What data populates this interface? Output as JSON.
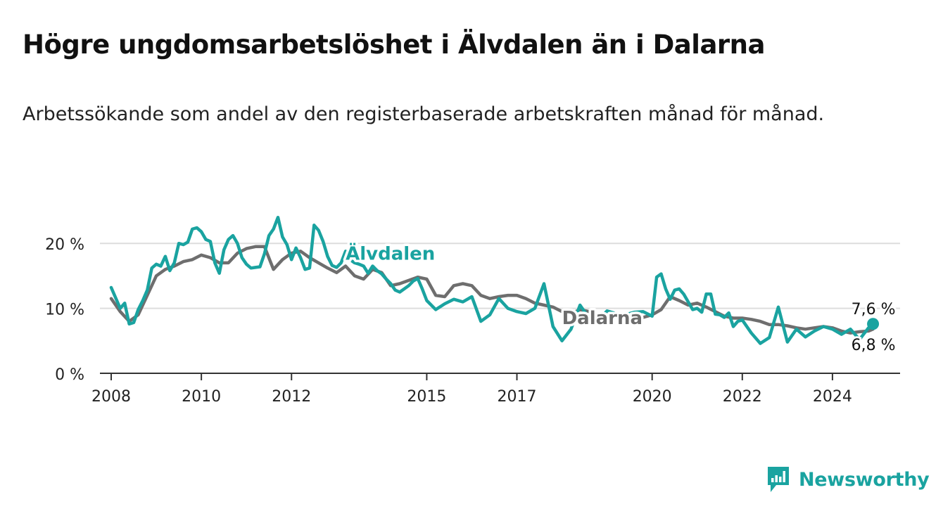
{
  "title": "Högre ungdomsarbetslöshet i Älvdalen än i Dalarna",
  "subtitle": "Arbetssökande som andel av den registerbaserade arbetskraften månad för månad.",
  "brand": {
    "name": "Newsworthy"
  },
  "colors": {
    "alvdalen": "#1aa3a0",
    "dalarna": "#6e6e6e",
    "grid": "#dddddd",
    "axis": "#333333"
  },
  "chart_data": {
    "type": "line",
    "title": "Högre ungdomsarbetslöshet i Älvdalen än i Dalarna",
    "subtitle": "Arbetssökande som andel av den registerbaserade arbetskraften månad för månad.",
    "x_unit": "year",
    "xlim": [
      2007.75,
      2025.5
    ],
    "ylim": [
      0,
      25
    ],
    "y_ticks": [
      0,
      10,
      20
    ],
    "y_tick_labels": [
      "0 %",
      "10 %",
      "20 %"
    ],
    "x_ticks": [
      2008,
      2010,
      2012,
      2015,
      2017,
      2020,
      2022,
      2024
    ],
    "x_tick_labels": [
      "2008",
      "2010",
      "2012",
      "2015",
      "2017",
      "2020",
      "2022",
      "2024"
    ],
    "grid": "horizontal",
    "legend": "inline labels on lines",
    "series": [
      {
        "name": "Älvdalen",
        "color": "#1aa3a0",
        "label_at": [
          2013.2,
          17.5
        ],
        "end_label": "7,6 %",
        "x": [
          2008.0,
          2008.2,
          2008.3,
          2008.4,
          2008.5,
          2008.6,
          2008.7,
          2008.8,
          2008.9,
          2009.0,
          2009.1,
          2009.2,
          2009.3,
          2009.4,
          2009.5,
          2009.6,
          2009.7,
          2009.8,
          2009.9,
          2010.0,
          2010.1,
          2010.2,
          2010.3,
          2010.4,
          2010.5,
          2010.6,
          2010.7,
          2010.8,
          2010.9,
          2011.0,
          2011.1,
          2011.2,
          2011.3,
          2011.4,
          2011.5,
          2011.6,
          2011.7,
          2011.8,
          2011.9,
          2012.0,
          2012.1,
          2012.2,
          2012.3,
          2012.4,
          2012.5,
          2012.6,
          2012.7,
          2012.8,
          2012.9,
          2013.0,
          2013.1,
          2013.2,
          2013.3,
          2013.4,
          2013.5,
          2013.6,
          2013.7,
          2013.8,
          2013.9,
          2014.0,
          2014.1,
          2014.2,
          2014.3,
          2014.4,
          2014.5,
          2014.6,
          2014.7,
          2014.8,
          2014.9,
          2015.0,
          2015.2,
          2015.4,
          2015.6,
          2015.8,
          2016.0,
          2016.2,
          2016.4,
          2016.6,
          2016.8,
          2017.0,
          2017.2,
          2017.4,
          2017.6,
          2017.8,
          2018.0,
          2018.2,
          2018.4,
          2018.6,
          2018.8,
          2019.0,
          2019.2,
          2019.4,
          2019.6,
          2019.8,
          2020.0,
          2020.1,
          2020.2,
          2020.3,
          2020.4,
          2020.5,
          2020.6,
          2020.7,
          2020.8,
          2020.9,
          2021.0,
          2021.1,
          2021.2,
          2021.3,
          2021.4,
          2021.5,
          2021.6,
          2021.7,
          2021.8,
          2021.9,
          2022.0,
          2022.2,
          2022.4,
          2022.6,
          2022.8,
          2023.0,
          2023.2,
          2023.4,
          2023.6,
          2023.8,
          2024.0,
          2024.2,
          2024.4,
          2024.6,
          2024.8,
          2024.9
        ],
        "y": [
          13.2,
          10.0,
          10.8,
          7.6,
          7.8,
          9.8,
          11.2,
          12.8,
          16.2,
          16.8,
          16.5,
          18.0,
          15.8,
          17.0,
          20.0,
          19.8,
          20.2,
          22.2,
          22.4,
          21.8,
          20.6,
          20.3,
          17.0,
          15.4,
          19.0,
          20.6,
          21.2,
          20.0,
          17.8,
          16.8,
          16.2,
          16.3,
          16.4,
          18.4,
          21.2,
          22.2,
          24.0,
          21.0,
          19.8,
          17.5,
          19.3,
          17.8,
          16.0,
          16.2,
          22.8,
          22.0,
          20.3,
          18.0,
          16.6,
          16.3,
          17.0,
          18.8,
          17.5,
          17.0,
          16.8,
          16.5,
          15.4,
          16.5,
          15.8,
          15.3,
          14.5,
          13.8,
          12.8,
          12.5,
          13.0,
          13.5,
          14.2,
          14.6,
          13.0,
          11.2,
          9.8,
          10.7,
          11.4,
          11.0,
          11.8,
          8.0,
          9.0,
          11.5,
          10.0,
          9.5,
          9.2,
          10.0,
          13.8,
          7.2,
          5.0,
          6.8,
          10.5,
          8.5,
          8.2,
          9.6,
          9.2,
          9.0,
          9.4,
          9.5,
          8.8,
          14.8,
          15.3,
          13.0,
          11.4,
          12.8,
          13.0,
          12.2,
          11.0,
          9.8,
          10.0,
          9.4,
          12.2,
          12.2,
          9.1,
          9.0,
          8.6,
          9.3,
          7.2,
          8.0,
          8.2,
          6.2,
          4.6,
          5.5,
          10.2,
          4.8,
          6.8,
          5.6,
          6.5,
          7.2,
          6.8,
          6.0,
          6.8,
          5.2,
          7.0,
          7.6
        ]
      },
      {
        "name": "Dalarna",
        "color": "#6e6e6e",
        "label_at": [
          2018.0,
          7.6
        ],
        "end_label": "6,8 %",
        "x": [
          2008.0,
          2008.2,
          2008.4,
          2008.6,
          2008.8,
          2009.0,
          2009.2,
          2009.4,
          2009.6,
          2009.8,
          2010.0,
          2010.2,
          2010.4,
          2010.6,
          2010.8,
          2011.0,
          2011.2,
          2011.4,
          2011.6,
          2011.8,
          2012.0,
          2012.2,
          2012.4,
          2012.6,
          2012.8,
          2013.0,
          2013.2,
          2013.4,
          2013.6,
          2013.8,
          2014.0,
          2014.2,
          2014.4,
          2014.6,
          2014.8,
          2015.0,
          2015.2,
          2015.4,
          2015.6,
          2015.8,
          2016.0,
          2016.2,
          2016.4,
          2016.6,
          2016.8,
          2017.0,
          2017.2,
          2017.4,
          2017.6,
          2017.8,
          2018.0,
          2018.2,
          2018.4,
          2018.6,
          2018.8,
          2019.0,
          2019.2,
          2019.4,
          2019.6,
          2019.8,
          2020.0,
          2020.2,
          2020.4,
          2020.6,
          2020.8,
          2021.0,
          2021.2,
          2021.4,
          2021.6,
          2021.8,
          2022.0,
          2022.2,
          2022.4,
          2022.6,
          2022.8,
          2023.0,
          2023.2,
          2023.4,
          2023.6,
          2023.8,
          2024.0,
          2024.2,
          2024.4,
          2024.6,
          2024.8,
          2024.9
        ],
        "y": [
          11.5,
          9.5,
          8.0,
          9.0,
          12.0,
          15.0,
          16.0,
          16.5,
          17.2,
          17.5,
          18.2,
          17.8,
          17.0,
          17.0,
          18.5,
          19.2,
          19.5,
          19.5,
          16.0,
          17.5,
          18.5,
          18.8,
          17.8,
          17.0,
          16.2,
          15.5,
          16.5,
          15.0,
          14.5,
          16.0,
          15.5,
          13.5,
          13.8,
          14.3,
          14.8,
          14.5,
          12.0,
          11.8,
          13.5,
          13.8,
          13.5,
          12.0,
          11.5,
          11.8,
          12.0,
          12.0,
          11.5,
          10.8,
          10.5,
          10.2,
          9.5,
          9.2,
          9.8,
          9.5,
          9.0,
          9.2,
          8.8,
          8.8,
          8.8,
          8.6,
          9.0,
          9.8,
          11.8,
          11.2,
          10.5,
          10.8,
          10.2,
          9.5,
          8.8,
          8.5,
          8.5,
          8.3,
          8.0,
          7.5,
          7.5,
          7.3,
          7.0,
          6.8,
          7.0,
          7.2,
          7.0,
          6.5,
          6.2,
          6.4,
          6.5,
          6.8
        ]
      }
    ]
  }
}
